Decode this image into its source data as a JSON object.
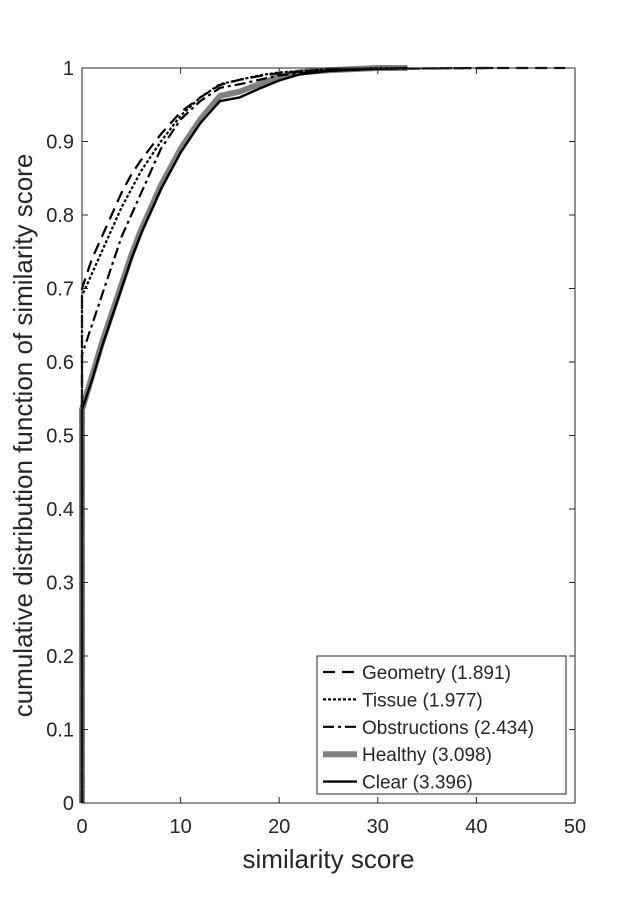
{
  "chart_data": {
    "type": "line",
    "title": "",
    "xlabel": "similarity score",
    "ylabel": "cumulative distribution function of similarity score",
    "xlim": [
      0,
      50
    ],
    "ylim": [
      0,
      1
    ],
    "xticks": [
      0,
      10,
      20,
      30,
      40,
      50
    ],
    "yticks": [
      0,
      0.1,
      0.2,
      0.3,
      0.4,
      0.5,
      0.6,
      0.7,
      0.8,
      0.9,
      1
    ],
    "xtick_labels": [
      "0",
      "10",
      "20",
      "30",
      "40",
      "50"
    ],
    "ytick_labels": [
      "0",
      "0.1",
      "0.2",
      "0.3",
      "0.4",
      "0.5",
      "0.6",
      "0.7",
      "0.8",
      "0.9",
      "1"
    ],
    "grid": false,
    "legend_position": "bottom-right",
    "series": [
      {
        "name": "Geometry (1.891)",
        "style": "dashed",
        "color": "#000000",
        "x": [
          0,
          0,
          1,
          2,
          3,
          4,
          5,
          6,
          8,
          10,
          12,
          14,
          16,
          18,
          20,
          25,
          30,
          40,
          49
        ],
        "y": [
          0,
          0.7,
          0.74,
          0.77,
          0.8,
          0.83,
          0.855,
          0.875,
          0.91,
          0.94,
          0.96,
          0.977,
          0.984,
          0.989,
          0.993,
          0.998,
          0.999,
          1.0,
          1.0
        ]
      },
      {
        "name": "Tissue (1.977)",
        "style": "dotted",
        "color": "#000000",
        "x": [
          0,
          0,
          1,
          2,
          3,
          4,
          5,
          6,
          8,
          10,
          12,
          14,
          16,
          18,
          20,
          25,
          30,
          33
        ],
        "y": [
          0,
          0.69,
          0.72,
          0.75,
          0.78,
          0.81,
          0.835,
          0.86,
          0.9,
          0.935,
          0.96,
          0.978,
          0.984,
          0.99,
          0.994,
          0.998,
          1.0,
          1.0
        ]
      },
      {
        "name": "Obstructions (2.434)",
        "style": "dashdot",
        "color": "#000000",
        "x": [
          0,
          0,
          1,
          2,
          3,
          4,
          5,
          6,
          8,
          10,
          12,
          14,
          16,
          18,
          20,
          25,
          30,
          42
        ],
        "y": [
          0,
          0.61,
          0.65,
          0.69,
          0.73,
          0.77,
          0.8,
          0.83,
          0.89,
          0.93,
          0.955,
          0.973,
          0.978,
          0.984,
          0.99,
          0.997,
          0.999,
          1.0
        ]
      },
      {
        "name": "Healthy (3.098)",
        "style": "solid-thick",
        "color": "#808080",
        "x": [
          0,
          0,
          1,
          2,
          3,
          4,
          5,
          6,
          8,
          10,
          12,
          14,
          16,
          18,
          20,
          22,
          25,
          30,
          33
        ],
        "y": [
          0,
          0.535,
          0.58,
          0.625,
          0.665,
          0.705,
          0.745,
          0.78,
          0.84,
          0.89,
          0.93,
          0.962,
          0.968,
          0.978,
          0.988,
          0.994,
          0.997,
          1.0,
          1.0
        ]
      },
      {
        "name": "Clear (3.396)",
        "style": "solid",
        "color": "#000000",
        "x": [
          0,
          0,
          1,
          2,
          3,
          4,
          5,
          6,
          8,
          10,
          12,
          14,
          16,
          18,
          20,
          22,
          25,
          30,
          33
        ],
        "y": [
          0,
          0.535,
          0.575,
          0.62,
          0.66,
          0.7,
          0.74,
          0.775,
          0.835,
          0.885,
          0.925,
          0.955,
          0.96,
          0.972,
          0.983,
          0.991,
          0.996,
          0.999,
          1.0
        ]
      }
    ]
  }
}
